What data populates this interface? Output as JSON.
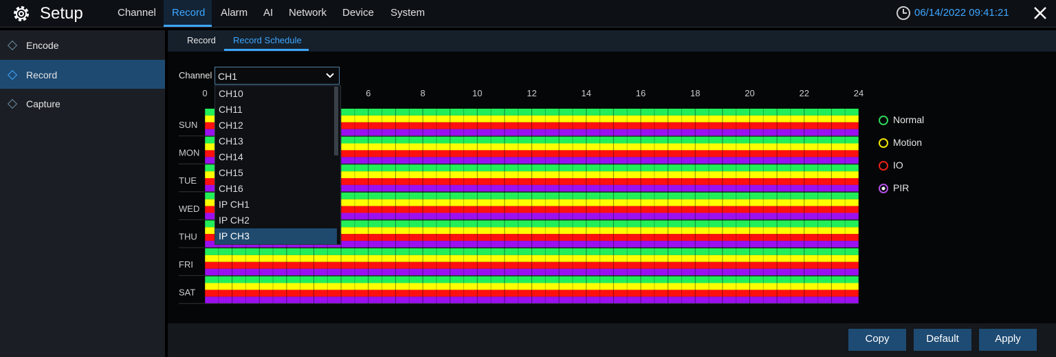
{
  "header": {
    "title": "Setup",
    "nav": [
      "Channel",
      "Record",
      "Alarm",
      "AI",
      "Network",
      "Device",
      "System"
    ],
    "datetime": "06/14/2022 09:41:21"
  },
  "sidebar": [
    "Encode",
    "Record",
    "Capture"
  ],
  "tabs": [
    "Record",
    "Record Schedule"
  ],
  "channel": {
    "label": "Channel",
    "selected": "CH1",
    "options": [
      "CH10",
      "CH11",
      "CH12",
      "CH13",
      "CH14",
      "CH15",
      "CH16",
      "IP CH1",
      "IP CH2",
      "IP CH3"
    ]
  },
  "schedule": {
    "hours": [
      0,
      6,
      8,
      10,
      12,
      14,
      16,
      18,
      20,
      22,
      24
    ],
    "days": [
      "SUN",
      "MON",
      "TUE",
      "WED",
      "THU",
      "FRI",
      "SAT"
    ]
  },
  "legend": [
    "Normal",
    "Motion",
    "IO",
    "PIR"
  ],
  "buttons": [
    "Copy",
    "Default",
    "Apply"
  ]
}
